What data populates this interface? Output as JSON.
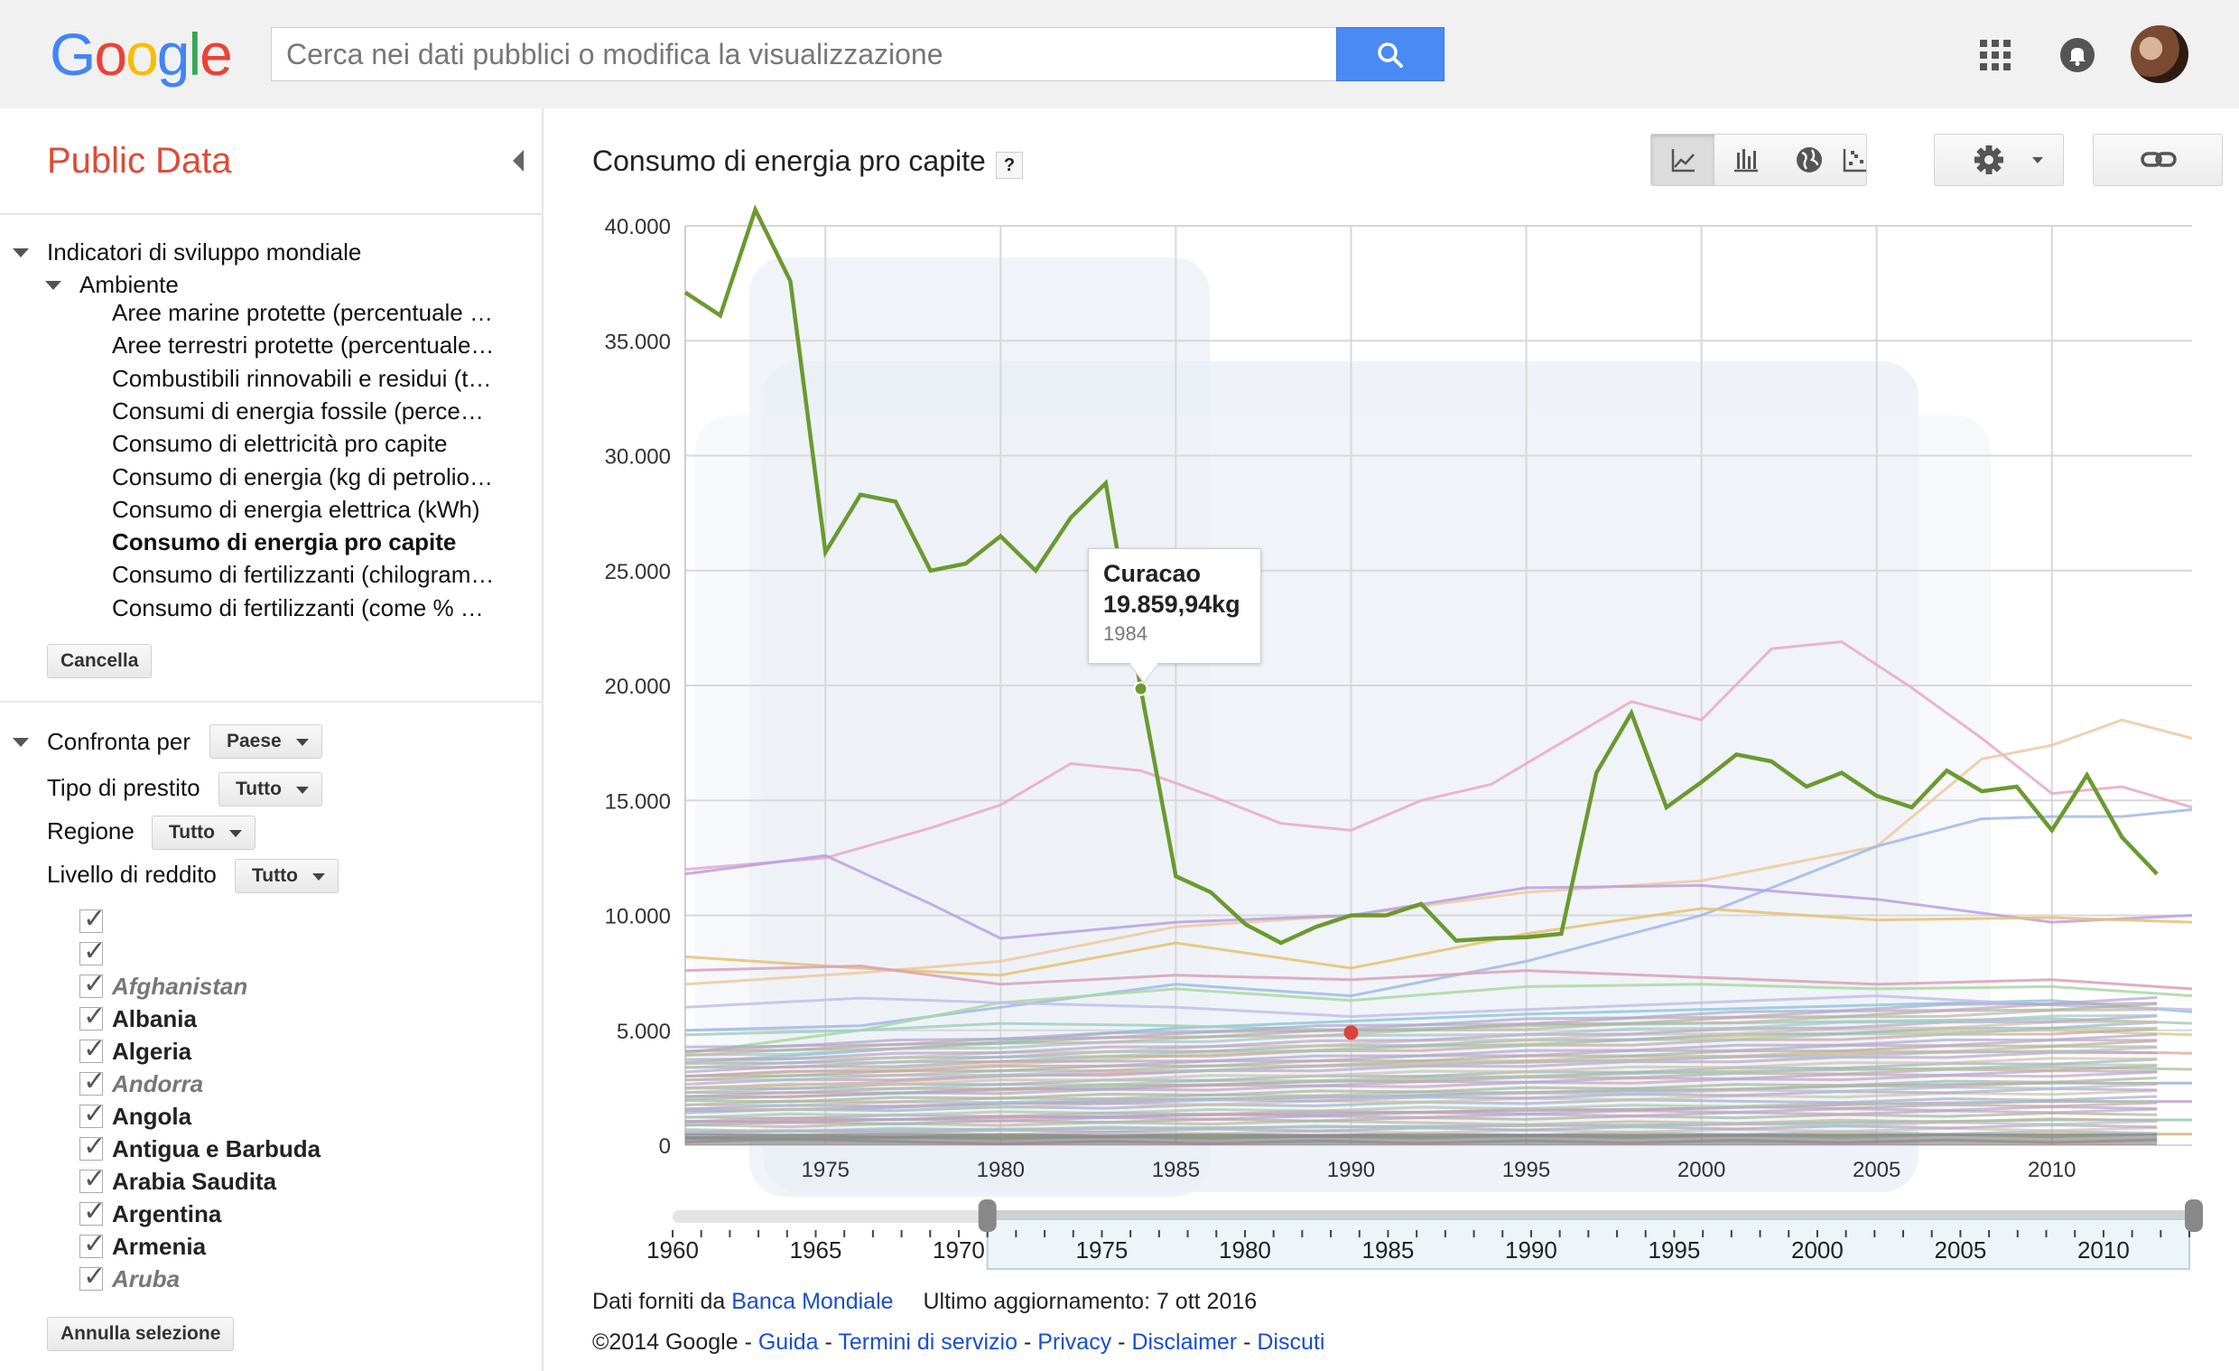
{
  "header": {
    "logo_letters": [
      {
        "ch": "G",
        "color": "#4285f4"
      },
      {
        "ch": "o",
        "color": "#ea4335"
      },
      {
        "ch": "o",
        "color": "#fbbc05"
      },
      {
        "ch": "g",
        "color": "#4285f4"
      },
      {
        "ch": "l",
        "color": "#34a853"
      },
      {
        "ch": "e",
        "color": "#ea4335"
      }
    ],
    "search_placeholder": "Cerca nei dati pubblici o modifica la visualizzazione",
    "search_button_icon": "search-icon",
    "apps_icon": "apps-grid-icon",
    "notifications_icon": "bell-icon"
  },
  "sidebar": {
    "title": "Public Data",
    "root_label": "Indicatori di sviluppo mondiale",
    "category_label": "Ambiente",
    "indicators": [
      {
        "label": "Aree marine protette (percentuale …",
        "active": false
      },
      {
        "label": "Aree terrestri protette (percentuale…",
        "active": false
      },
      {
        "label": "Combustibili rinnovabili e residui (t…",
        "active": false
      },
      {
        "label": "Consumi di energia fossile (perce…",
        "active": false
      },
      {
        "label": "Consumo di elettricità pro capite",
        "active": false
      },
      {
        "label": "Consumo di energia (kg di petrolio…",
        "active": false
      },
      {
        "label": "Consumo di energia elettrica (kWh)",
        "active": false
      },
      {
        "label": "Consumo di energia pro capite",
        "active": true
      },
      {
        "label": "Consumo di fertilizzanti (chilogram…",
        "active": false
      },
      {
        "label": "Consumo di fertilizzanti (come % …",
        "active": false
      }
    ],
    "cancel_label": "Cancella",
    "compare_label": "Confronta per",
    "compare_value": "Paese",
    "filters": [
      {
        "label": "Tipo di prestito",
        "value": "Tutto"
      },
      {
        "label": "Regione",
        "value": "Tutto"
      },
      {
        "label": "Livello di reddito",
        "value": "Tutto"
      }
    ],
    "countries": [
      {
        "label": "",
        "dim": false
      },
      {
        "label": "",
        "dim": false
      },
      {
        "label": "Afghanistan",
        "dim": true
      },
      {
        "label": "Albania",
        "dim": false
      },
      {
        "label": "Algeria",
        "dim": false
      },
      {
        "label": "Andorra",
        "dim": true
      },
      {
        "label": "Angola",
        "dim": false
      },
      {
        "label": "Antigua e Barbuda",
        "dim": false
      },
      {
        "label": "Arabia Saudita",
        "dim": false
      },
      {
        "label": "Argentina",
        "dim": false
      },
      {
        "label": "Armenia",
        "dim": false
      },
      {
        "label": "Aruba",
        "dim": true
      }
    ],
    "deselect_label": "Annulla selezione"
  },
  "main": {
    "title": "Consumo di energia pro capite",
    "help_label": "?",
    "chart_type_icons": [
      "line-chart-icon",
      "bar-chart-icon",
      "map-globe-icon",
      "scatter-chart-icon"
    ],
    "settings_icon": "gear-icon",
    "link_icon": "link-icon",
    "tooltip": {
      "name": "Curacao",
      "value": "19.859,94kg",
      "year": "1984"
    },
    "footer": {
      "source_prefix": "Dati forniti da",
      "source_link": "Banca Mondiale",
      "updated": "Ultimo aggiornamento: 7 ott 2016",
      "copyright": "©2014 Google",
      "sep": "-",
      "links": [
        "Guida",
        "Termini di servizio",
        "Privacy",
        "Disclaimer",
        "Discuti"
      ]
    }
  },
  "chart_data": {
    "type": "line",
    "title": "Consumo di energia pro capite",
    "ylim": [
      0,
      40000
    ],
    "y_ticks": [
      0,
      5000,
      10000,
      15000,
      20000,
      25000,
      30000,
      35000,
      40000
    ],
    "y_tick_labels": [
      "0",
      "5.000",
      "10.000",
      "15.000",
      "20.000",
      "25.000",
      "30.000",
      "35.000",
      "40.000"
    ],
    "xlim": [
      1971,
      2014
    ],
    "x_ticks": [
      1975,
      1980,
      1985,
      1990,
      1995,
      2000,
      2005,
      2010
    ],
    "timeline": {
      "range": [
        1960,
        2013
      ],
      "ticks": [
        1960,
        1965,
        1970,
        1975,
        1980,
        1985,
        1990,
        1995,
        2000,
        2005,
        2010
      ],
      "selected": [
        1971,
        2014
      ]
    },
    "highlighted_series": {
      "name": "Curacao",
      "color": "#6a9a30",
      "x": [
        1971,
        1972,
        1973,
        1974,
        1975,
        1976,
        1977,
        1978,
        1979,
        1980,
        1981,
        1982,
        1983,
        1984,
        1985,
        1986,
        1987,
        1988,
        1989,
        1990,
        1991,
        1992,
        1993,
        1994,
        1995,
        1996,
        1997,
        1998,
        1999,
        2000,
        2001,
        2002,
        2003,
        2004,
        2005,
        2006,
        2007,
        2008,
        2009,
        2010,
        2011,
        2012,
        2013
      ],
      "y": [
        37100,
        36100,
        40700,
        37600,
        25800,
        28300,
        28000,
        25000,
        25300,
        26500,
        25000,
        27300,
        28800,
        19860,
        11700,
        11000,
        9600,
        8800,
        9500,
        10000,
        10000,
        10500,
        8900,
        9000,
        9050,
        9200,
        16200,
        18800,
        14700,
        15800,
        17000,
        16700,
        15600,
        16200,
        15200,
        14700,
        16300,
        15400,
        15600,
        13700,
        16100,
        13400,
        11800
      ]
    },
    "background_series": [
      {
        "color": "#e8a8c8",
        "x": [
          1971,
          1975,
          1978,
          1980,
          1982,
          1984,
          1986,
          1988,
          1990,
          1992,
          1994,
          1996,
          1998,
          2000,
          2002,
          2004,
          2006,
          2008,
          2010,
          2012,
          2014
        ],
        "y": [
          12000,
          12500,
          13800,
          14800,
          16600,
          16300,
          15200,
          14000,
          13700,
          15000,
          15700,
          17500,
          19300,
          18500,
          21600,
          21900,
          19900,
          17700,
          15300,
          15600,
          14700
        ]
      },
      {
        "color": "#f0c8a0",
        "x": [
          1971,
          1976,
          1980,
          1985,
          1990,
          1995,
          2000,
          2005,
          2008,
          2010,
          2012,
          2014
        ],
        "y": [
          7000,
          7500,
          8000,
          9500,
          10000,
          11000,
          11500,
          13000,
          16800,
          17400,
          18500,
          17700
        ]
      },
      {
        "color": "#a0b8e8",
        "x": [
          1971,
          1976,
          1980,
          1985,
          1990,
          1995,
          2000,
          2005,
          2008,
          2010,
          2012,
          2014
        ],
        "y": [
          5000,
          5200,
          6000,
          7000,
          6500,
          8000,
          10000,
          13000,
          14200,
          14300,
          14300,
          14600
        ]
      },
      {
        "color": "#b8a0e0",
        "x": [
          1971,
          1975,
          1978,
          1980,
          1985,
          1990,
          1995,
          2000,
          2005,
          2010,
          2014
        ],
        "y": [
          11800,
          12600,
          10500,
          9000,
          9700,
          10000,
          11200,
          11300,
          10700,
          9700,
          10000
        ]
      },
      {
        "color": "#a8d8a0",
        "x": [
          1971,
          1976,
          1980,
          1985,
          1990,
          1995,
          2000,
          2005,
          2010,
          2014
        ],
        "y": [
          4000,
          5000,
          6200,
          6800,
          6300,
          6900,
          7000,
          6800,
          6900,
          6500
        ]
      },
      {
        "color": "#e8c070",
        "x": [
          1971,
          1976,
          1980,
          1985,
          1990,
          1995,
          2000,
          2005,
          2010,
          2014
        ],
        "y": [
          8200,
          7700,
          7400,
          8800,
          7700,
          9200,
          10300,
          9800,
          9900,
          9700
        ]
      },
      {
        "color": "#90c8d8",
        "x": [
          1971,
          1976,
          1980,
          1985,
          1990,
          1995,
          2000,
          2005,
          2010,
          2014
        ],
        "y": [
          3600,
          4100,
          4500,
          5100,
          5400,
          5700,
          5900,
          6100,
          6300,
          5800
        ]
      },
      {
        "color": "#d8a0b8",
        "x": [
          1971,
          1976,
          1980,
          1985,
          1990,
          1995,
          2000,
          2005,
          2010,
          2014
        ],
        "y": [
          7600,
          7800,
          7000,
          7400,
          7200,
          7600,
          7300,
          7000,
          7200,
          6800
        ]
      },
      {
        "color": "#c0c0e8",
        "x": [
          1971,
          1976,
          1980,
          1985,
          1990,
          1995,
          2000,
          2005,
          2010,
          2014
        ],
        "y": [
          6000,
          6400,
          6200,
          6000,
          5600,
          5900,
          6200,
          6500,
          6100,
          5900
        ]
      },
      {
        "color": "#a0d0c0",
        "x": [
          1971,
          1976,
          1980,
          1985,
          1990,
          1995,
          2000,
          2005,
          2010,
          2014
        ],
        "y": [
          4800,
          5000,
          5300,
          5200,
          5000,
          5200,
          5300,
          5400,
          5500,
          5300
        ]
      },
      {
        "color": "#d8d090",
        "x": [
          1971,
          1976,
          1980,
          1985,
          1990,
          1995,
          2000,
          2005,
          2010,
          2014
        ],
        "y": [
          3000,
          3300,
          3500,
          3900,
          4200,
          4400,
          4700,
          4900,
          5000,
          4800
        ]
      },
      {
        "color": "#e0b0a0",
        "x": [
          1971,
          1976,
          1980,
          1985,
          1990,
          1995,
          2000,
          2005,
          2010,
          2014
        ],
        "y": [
          2500,
          2700,
          3000,
          3200,
          3500,
          3600,
          3800,
          4000,
          4100,
          4000
        ]
      },
      {
        "color": "#b0c8a0",
        "x": [
          1971,
          1976,
          1980,
          1985,
          1990,
          1995,
          2000,
          2005,
          2010,
          2014
        ],
        "y": [
          2000,
          2200,
          2400,
          2600,
          2800,
          3000,
          3200,
          3300,
          3400,
          3300
        ]
      },
      {
        "color": "#9cb0d8",
        "x": [
          1971,
          1976,
          1980,
          1985,
          1990,
          1995,
          2000,
          2005,
          2010,
          2014
        ],
        "y": [
          1500,
          1600,
          1800,
          2000,
          2100,
          2300,
          2400,
          2600,
          2700,
          2700
        ]
      },
      {
        "color": "#c8a0c8",
        "x": [
          1971,
          1976,
          1980,
          1985,
          1990,
          1995,
          2000,
          2005,
          2010,
          2014
        ],
        "y": [
          1000,
          1100,
          1200,
          1300,
          1400,
          1500,
          1600,
          1800,
          1900,
          1900
        ]
      },
      {
        "color": "#98c8b0",
        "x": [
          1971,
          1976,
          1980,
          1985,
          1990,
          1995,
          2000,
          2005,
          2010,
          2014
        ],
        "y": [
          600,
          650,
          700,
          750,
          800,
          850,
          900,
          1000,
          1100,
          1100
        ]
      },
      {
        "color": "#d0b880",
        "x": [
          1971,
          1976,
          1980,
          1985,
          1990,
          1995,
          2000,
          2005,
          2010,
          2014
        ],
        "y": [
          300,
          320,
          340,
          360,
          380,
          400,
          420,
          450,
          480,
          480
        ]
      }
    ],
    "marker_point": {
      "x": 1990,
      "y": 4900,
      "color": "#d9453a"
    }
  }
}
